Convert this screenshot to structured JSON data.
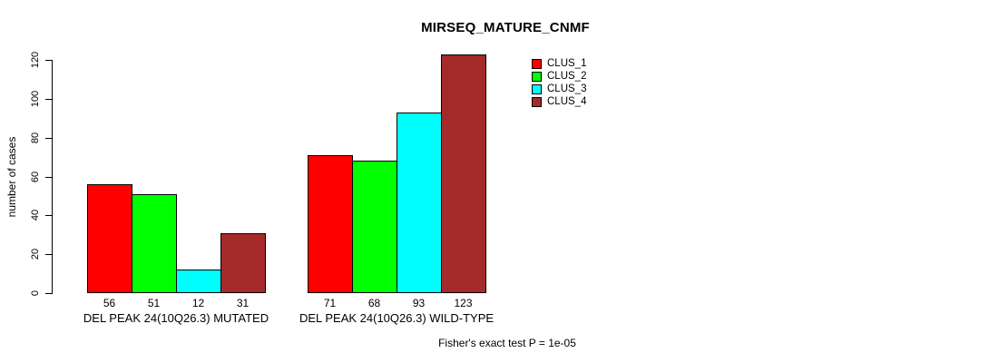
{
  "chart_data": {
    "type": "bar",
    "title": "MIRSEQ_MATURE_CNMF",
    "ylabel": "number of cases",
    "xlabel": "",
    "ylim": [
      0,
      120
    ],
    "yticks": [
      0,
      20,
      40,
      60,
      80,
      100,
      120
    ],
    "grid": false,
    "legend_position": "top-right",
    "categories": [
      "DEL PEAK 24(10Q26.3) MUTATED",
      "DEL PEAK 24(10Q26.3) WILD-TYPE"
    ],
    "series": [
      {
        "name": "CLUS_1",
        "color": "#ff0000",
        "values": [
          56,
          71
        ]
      },
      {
        "name": "CLUS_2",
        "color": "#00ff00",
        "values": [
          51,
          68
        ]
      },
      {
        "name": "CLUS_3",
        "color": "#00ffff",
        "values": [
          12,
          93
        ]
      },
      {
        "name": "CLUS_4",
        "color": "#a52a2a",
        "values": [
          31,
          123
        ]
      }
    ],
    "bar_value_labels": true,
    "annotation": "Fisher's exact test P = 1e-05"
  },
  "colors": {
    "background": "#ffffff",
    "axis": "#000000",
    "text": "#000000"
  }
}
